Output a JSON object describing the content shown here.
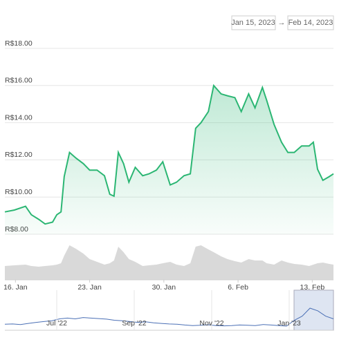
{
  "date_range": {
    "from": "Jan 15, 2023",
    "separator": "→",
    "to": "Feb 14, 2023"
  },
  "chart_data": [
    {
      "type": "line",
      "x": [
        15,
        15.9,
        16.95,
        17.5,
        18.2,
        18.8,
        19.5,
        19.9,
        20.3,
        20.6,
        21.1,
        21.7,
        22.4,
        23.0,
        23.7,
        24.4,
        24.9,
        25.3,
        25.7,
        26.2,
        26.7,
        27.3,
        28.0,
        28.6,
        29.3,
        29.9,
        30.6,
        31.2,
        31.9,
        32.5,
        33.0,
        33.5,
        34.2,
        34.7,
        35.4,
        36.0,
        36.7,
        37.3,
        38.0,
        38.6,
        39.3,
        39.7,
        40.4,
        41.1,
        41.7,
        42.3,
        43.0,
        43.7,
        44.1,
        44.5,
        45.0,
        45.6,
        46.0
      ],
      "series": [
        {
          "color": "#2bb673",
          "values": [
            9.2,
            9.3,
            9.5,
            9.05,
            8.8,
            8.55,
            8.65,
            9.05,
            9.2,
            11.1,
            12.4,
            12.1,
            11.8,
            11.45,
            11.45,
            11.15,
            10.15,
            10.05,
            12.4,
            11.8,
            10.8,
            11.6,
            11.15,
            11.25,
            11.45,
            11.9,
            10.65,
            10.8,
            11.15,
            11.25,
            13.7,
            14.0,
            14.6,
            16.0,
            15.55,
            15.45,
            15.35,
            14.6,
            15.55,
            14.8,
            15.9,
            15.2,
            13.9,
            12.95,
            12.4,
            12.4,
            12.75,
            12.75,
            12.95,
            11.5,
            10.9,
            11.1,
            11.25
          ]
        },
        {
          "color": "#d0d0d0",
          "axis": "y2",
          "values": [
            20,
            21,
            22,
            20,
            19,
            20,
            21,
            22,
            24,
            35,
            50,
            45,
            38,
            30,
            26,
            22,
            24,
            28,
            48,
            40,
            30,
            26,
            20,
            21,
            22,
            24,
            26,
            22,
            20,
            24,
            48,
            50,
            44,
            40,
            34,
            30,
            27,
            25,
            30,
            28,
            28,
            24,
            22,
            28,
            25,
            23,
            22,
            20,
            22,
            24,
            25,
            23,
            22
          ]
        }
      ],
      "xlim": [
        15,
        46
      ],
      "xticks": [
        {
          "value": 16,
          "label": "16. Jan"
        },
        {
          "value": 23,
          "label": "23. Jan"
        },
        {
          "value": 30,
          "label": "30. Jan"
        },
        {
          "value": 37,
          "label": "6. Feb"
        },
        {
          "value": 44,
          "label": "13. Feb"
        }
      ],
      "ylim": [
        8,
        18
      ],
      "yticks": [
        {
          "value": 8,
          "label": "R$8.00"
        },
        {
          "value": 10,
          "label": "R$10.00"
        },
        {
          "value": 12,
          "label": "R$12.00"
        },
        {
          "value": 14,
          "label": "R$14.00"
        },
        {
          "value": 16,
          "label": "R$16.00"
        },
        {
          "value": 18,
          "label": "R$18.00"
        }
      ],
      "y2lim": [
        0,
        60
      ],
      "grid": true
    },
    {
      "type": "navigator",
      "color": "#4a6fb5",
      "values": [
        9.5,
        9.6,
        9.4,
        9.8,
        10.2,
        10.5,
        10.8,
        11.5,
        11.8,
        11.5,
        12.0,
        11.8,
        11.6,
        11.4,
        11.0,
        10.8,
        10.5,
        10.2,
        10.4,
        10.0,
        9.8,
        9.6,
        9.5,
        9.2,
        9.0,
        9.1,
        9.3,
        9.0,
        8.9,
        9.0,
        9.2,
        9.1,
        9.0,
        9.4,
        9.2,
        9.0,
        8.8,
        11.0,
        12.5,
        15.5,
        14.5,
        12.5,
        11.5
      ],
      "x_labels": [
        "Jul '22",
        "Sep '22",
        "Nov '22",
        "Jan '23"
      ]
    }
  ]
}
